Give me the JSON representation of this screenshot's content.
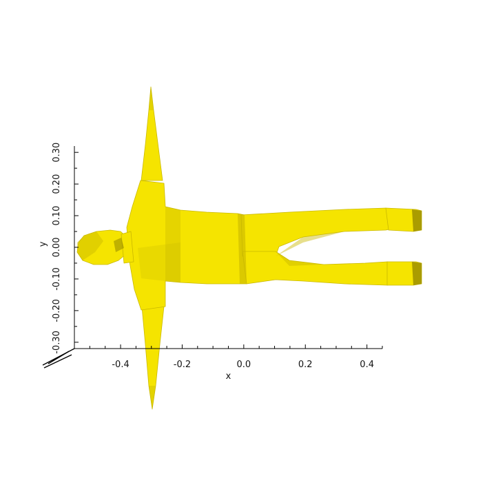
{
  "chart_data": {
    "type": "3d-mesh",
    "xlabel": "x",
    "ylabel": "y",
    "x_ticks": [
      "-0.4",
      "-0.2",
      "0.0",
      "0.2",
      "0.4"
    ],
    "y_ticks": [
      "0.30",
      "0.20",
      "0.10",
      "0.00",
      "-0.10",
      "-0.20",
      "-0.30"
    ],
    "x_tick_values": [
      -0.4,
      -0.2,
      0.0,
      0.2,
      0.4
    ],
    "y_tick_values": [
      0.3,
      0.2,
      0.1,
      0.0,
      -0.1,
      -0.2,
      -0.3
    ],
    "xlim": [
      -0.55,
      0.45
    ],
    "ylim": [
      -0.32,
      0.32
    ],
    "mesh_color": "#f5e400",
    "mesh_shadow": "#c9b800",
    "mesh_dark": "#8a7e00",
    "axis_color": "#000000",
    "grid": false
  }
}
